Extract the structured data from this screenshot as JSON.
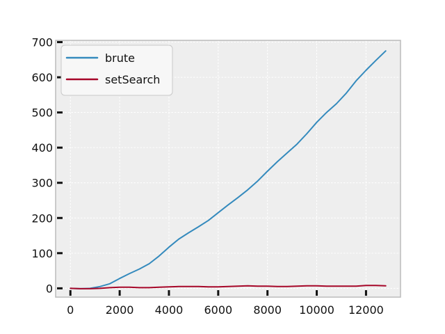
{
  "chart_data": {
    "type": "line",
    "title": "",
    "xlabel": "",
    "ylabel": "",
    "xlim": [
      -600,
      13400
    ],
    "ylim": [
      -25,
      705
    ],
    "xticks": [
      0,
      2000,
      4000,
      6000,
      8000,
      10000,
      12000
    ],
    "yticks": [
      0,
      100,
      200,
      300,
      400,
      500,
      600,
      700
    ],
    "xtick_labels": [
      "0",
      "2000",
      "4000",
      "6000",
      "8000",
      "10000",
      "12000"
    ],
    "ytick_labels": [
      "0",
      "100",
      "200",
      "300",
      "400",
      "500",
      "600",
      "700"
    ],
    "grid": true,
    "legend_position": "top-left",
    "series": [
      {
        "name": "brute",
        "color": "#348abd",
        "x": [
          0,
          400,
          800,
          1200,
          1600,
          2000,
          2400,
          2800,
          3200,
          3600,
          4000,
          4400,
          4800,
          5200,
          5600,
          6000,
          6400,
          6800,
          7200,
          7600,
          8000,
          8400,
          8800,
          9200,
          9600,
          10000,
          10400,
          10800,
          11200,
          11600,
          12000,
          12400,
          12800
        ],
        "y": [
          0,
          -1,
          0,
          5,
          13,
          28,
          42,
          55,
          70,
          92,
          117,
          140,
          158,
          175,
          193,
          215,
          237,
          258,
          280,
          305,
          333,
          360,
          385,
          410,
          440,
          472,
          500,
          525,
          555,
          590,
          620,
          648,
          675
        ]
      },
      {
        "name": "setSearch",
        "color": "#a60628",
        "x": [
          0,
          400,
          800,
          1200,
          1600,
          2000,
          2400,
          2800,
          3200,
          3600,
          4000,
          4400,
          4800,
          5200,
          5600,
          6000,
          6400,
          6800,
          7200,
          7600,
          8000,
          8400,
          8800,
          9200,
          9600,
          10000,
          10400,
          10800,
          11200,
          11600,
          12000,
          12400,
          12800
        ],
        "y": [
          0,
          -1,
          -1,
          0,
          2,
          3,
          3,
          2,
          2,
          3,
          4,
          5,
          5,
          5,
          4,
          4,
          5,
          6,
          7,
          6,
          6,
          5,
          5,
          6,
          7,
          7,
          6,
          6,
          6,
          6,
          8,
          8,
          7
        ]
      }
    ]
  }
}
